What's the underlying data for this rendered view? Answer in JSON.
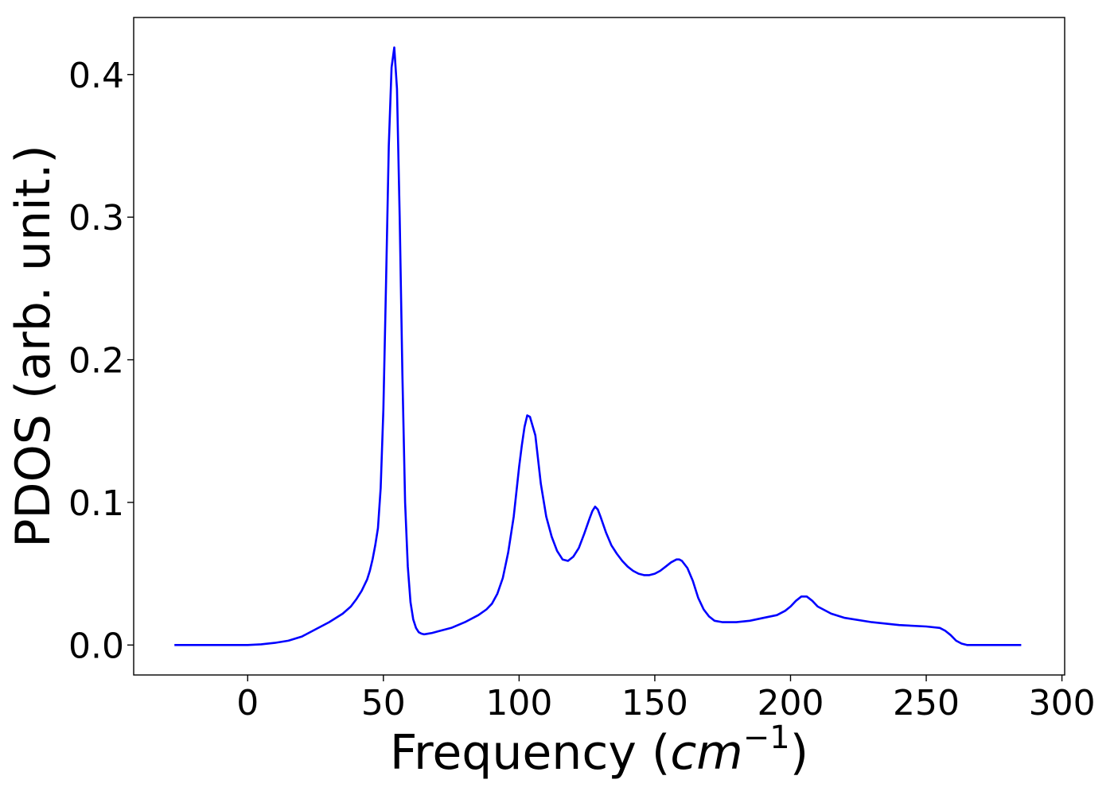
{
  "chart_data": {
    "type": "line",
    "title": "",
    "xlabel": "Frequency (",
    "xlabel_italic": "cm",
    "xlabel_superscript": "−1",
    "xlabel_close": ")",
    "ylabel": "PDOS (arb. unit.)",
    "xlim": [
      -42,
      301
    ],
    "ylim": [
      -0.021,
      0.44
    ],
    "xticks": [
      0,
      50,
      100,
      150,
      200,
      250,
      300
    ],
    "xtick_labels": [
      "0",
      "50",
      "100",
      "150",
      "200",
      "250",
      "300"
    ],
    "yticks": [
      0.0,
      0.1,
      0.2,
      0.3,
      0.4
    ],
    "ytick_labels": [
      "0.0",
      "0.1",
      "0.2",
      "0.3",
      "0.4"
    ],
    "grid": false,
    "legend": "none",
    "series": [
      {
        "color": "#0000ff",
        "x": [
          -27,
          -10,
          0,
          5,
          10,
          15,
          20,
          25,
          30,
          35,
          38,
          40,
          42,
          44,
          45,
          46,
          47,
          48,
          49,
          50,
          51,
          52,
          53,
          54,
          55,
          56,
          57,
          58,
          59,
          60,
          61,
          62,
          63,
          64,
          65,
          66,
          68,
          70,
          75,
          80,
          85,
          88,
          90,
          92,
          94,
          96,
          98,
          100,
          101,
          102,
          103,
          104,
          106,
          108,
          110,
          112,
          114,
          116,
          118,
          120,
          122,
          124,
          126,
          127,
          128,
          129,
          130,
          132,
          134,
          136,
          138,
          140,
          142,
          144,
          146,
          148,
          150,
          152,
          154,
          156,
          158,
          159,
          160,
          162,
          164,
          166,
          168,
          170,
          172,
          175,
          180,
          185,
          190,
          195,
          198,
          200,
          202,
          204,
          206,
          208,
          210,
          215,
          220,
          230,
          240,
          250,
          255,
          257,
          259,
          261,
          263,
          265,
          270,
          280,
          285
        ],
        "y": [
          0.0,
          0.0,
          0.0,
          0.0005,
          0.0015,
          0.003,
          0.006,
          0.011,
          0.016,
          0.022,
          0.027,
          0.032,
          0.038,
          0.046,
          0.052,
          0.06,
          0.07,
          0.082,
          0.11,
          0.165,
          0.255,
          0.35,
          0.405,
          0.419,
          0.39,
          0.3,
          0.19,
          0.1,
          0.055,
          0.03,
          0.018,
          0.012,
          0.009,
          0.008,
          0.0075,
          0.0078,
          0.0085,
          0.0095,
          0.012,
          0.016,
          0.021,
          0.025,
          0.029,
          0.036,
          0.047,
          0.065,
          0.09,
          0.125,
          0.14,
          0.153,
          0.161,
          0.16,
          0.147,
          0.113,
          0.09,
          0.076,
          0.066,
          0.06,
          0.059,
          0.062,
          0.068,
          0.078,
          0.089,
          0.094,
          0.097,
          0.095,
          0.09,
          0.079,
          0.07,
          0.064,
          0.059,
          0.055,
          0.052,
          0.05,
          0.049,
          0.049,
          0.05,
          0.052,
          0.055,
          0.058,
          0.06,
          0.06,
          0.059,
          0.054,
          0.045,
          0.033,
          0.025,
          0.02,
          0.017,
          0.016,
          0.016,
          0.017,
          0.019,
          0.021,
          0.024,
          0.027,
          0.031,
          0.034,
          0.034,
          0.031,
          0.027,
          0.022,
          0.019,
          0.016,
          0.014,
          0.013,
          0.012,
          0.01,
          0.007,
          0.003,
          0.001,
          0.0,
          0.0,
          0.0,
          0.0
        ]
      }
    ]
  }
}
